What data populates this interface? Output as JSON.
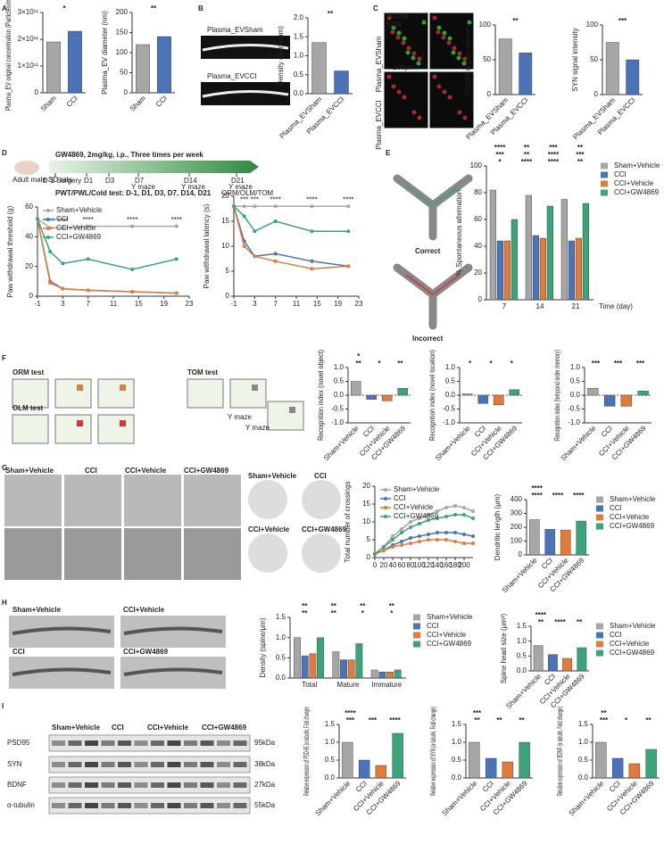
{
  "labels": [
    "A",
    "B",
    "C",
    "D",
    "E",
    "F",
    "G",
    "H",
    "I",
    "Plasma_EVSham",
    "Plasma_EVCCI",
    "4 μm",
    "PSD95",
    "SYN",
    "100μm",
    "Plasma_EVSham",
    "Plasma_EVCCI",
    "Adult male SD rats",
    "GW4869, 2mg/kg, i.p., Three times per week",
    "D-1 Surgery",
    "D1",
    "D3",
    "D7",
    "D14",
    "D21",
    "Y maze",
    "Y maze",
    "Y maze",
    "ORM/OLM/TOM",
    "PWT/PWL/Cold test: D-1, D1, D3, D7, D14, D21",
    "Correct",
    "Incorrect",
    "ORM test",
    "OLM test",
    "TOM test",
    "Y maze",
    "Y maze",
    "Sham+Vehicle",
    "CCI",
    "CCI+Vehicle",
    "CCI+GW4869",
    "Sham+Vehicle",
    "CCI",
    "CCI+Vehicle",
    "CCI+GW4869",
    "Sham+Vehicle",
    "CCI+Vehicle",
    "CCI",
    "CCI+GW4869",
    "Sham+Vehicle",
    "CCI",
    "CCI+Vehicle",
    "CCI+GW4869",
    "PSD95",
    "SYN",
    "BDNF",
    "α-tubulin",
    "95kDa",
    "38kDa",
    "27kDa",
    "55kDa"
  ],
  "chart_data": [
    {
      "type": "bar",
      "ylabel": "Plasma_EV original concentration (Particles/mL)",
      "categories": [
        "Sham",
        "CCI"
      ],
      "values": [
        190000000000,
        230000000000
      ],
      "colors": [
        "#a6a6a6",
        "#4a73b8"
      ],
      "ylim": [
        0,
        300000000000
      ],
      "yticks": [
        0,
        {
          "value": 100000000000,
          "label": "1×10¹¹"
        },
        {
          "value": 200000000000,
          "label": "2×10¹¹"
        },
        {
          "value": 300000000000,
          "label": "3×10¹¹"
        }
      ],
      "significance": [
        "*"
      ],
      "legend": "none"
    },
    {
      "type": "bar",
      "ylabel": "Plasma_EV diameter (nm)",
      "categories": [
        "Sham",
        "CCI"
      ],
      "values": [
        120,
        140
      ],
      "colors": [
        "#a6a6a6",
        "#4a73b8"
      ],
      "ylim": [
        0,
        200
      ],
      "yticks": [
        0,
        50,
        100,
        150,
        200
      ],
      "significance": [
        "**"
      ],
      "legend": "none"
    },
    {
      "type": "bar",
      "ylabel": "Density (spine/μm)",
      "categories": [
        "Plasma_EVSham",
        "Plasma_EVCCI"
      ],
      "values": [
        1.35,
        0.6
      ],
      "colors": [
        "#a6a6a6",
        "#4a73b8"
      ],
      "ylim": [
        0,
        2
      ],
      "yticks": [
        {
          "value": 0,
          "label": "0.0"
        },
        0.5,
        {
          "value": 1,
          "label": "1.0"
        },
        1.5,
        {
          "value": 2,
          "label": "2.0"
        }
      ],
      "significance": [
        "**"
      ],
      "legend": "none"
    },
    {
      "type": "bar",
      "ylabel": "PSD95 signal intensity",
      "categories": [
        "Plasma_EVSham",
        "Plasma_EVCCI"
      ],
      "values": [
        80,
        60
      ],
      "colors": [
        "#a6a6a6",
        "#4a73b8"
      ],
      "ylim": [
        0,
        100
      ],
      "yticks": [
        0,
        50,
        100
      ],
      "significance": [
        "**"
      ],
      "legend": "none"
    },
    {
      "type": "bar",
      "ylabel": "SYN signal intensity",
      "categories": [
        "Plasma_EVSham",
        "Plasma_EVCCI"
      ],
      "values": [
        75,
        50
      ],
      "colors": [
        "#a6a6a6",
        "#4a73b8"
      ],
      "ylim": [
        0,
        100
      ],
      "yticks": [
        0,
        50,
        100
      ],
      "significance": [
        "***"
      ],
      "legend": "none"
    },
    {
      "type": "line",
      "ylabel": "Paw withdrawal threshold (g)",
      "x": [
        -1,
        1,
        3,
        7,
        14,
        21
      ],
      "xlim": [
        -1,
        23
      ],
      "xticks": [
        -1,
        3,
        7,
        11,
        15,
        19,
        23
      ],
      "ylim": [
        0,
        60
      ],
      "yticks": [
        0,
        20,
        40,
        60
      ],
      "legend": "upper-left",
      "significance": [
        "****",
        "****",
        "****",
        "****",
        "****"
      ],
      "series": [
        {
          "name": "Sham+Vehicle",
          "color": "#a6a6a6",
          "values": [
            52,
            46,
            46,
            47,
            47,
            47
          ]
        },
        {
          "name": "CCI",
          "color": "#4a73b8",
          "values": [
            52,
            10,
            5,
            4,
            3,
            2
          ]
        },
        {
          "name": "CCI+Vehicle",
          "color": "#e07b39",
          "values": [
            52,
            9,
            5,
            4,
            3,
            2
          ]
        },
        {
          "name": "CCI+GW4869",
          "color": "#3aa57a",
          "values": [
            52,
            30,
            22,
            25,
            18,
            25
          ]
        }
      ]
    },
    {
      "type": "line",
      "ylabel": "Paw withdrawal latency (s)",
      "x": [
        -1,
        1,
        3,
        7,
        14,
        21
      ],
      "xlim": [
        -1,
        23
      ],
      "xticks": [
        -1,
        3,
        7,
        11,
        15,
        19,
        23
      ],
      "ylim": [
        0,
        20
      ],
      "yticks": [
        0,
        5,
        10,
        15,
        20
      ],
      "legend": "none",
      "significance": [
        "***",
        "***",
        "****",
        "****",
        "****"
      ],
      "series": [
        {
          "name": "Sham+Vehicle",
          "color": "#a6a6a6",
          "values": [
            18,
            18,
            18,
            18,
            18,
            18
          ]
        },
        {
          "name": "CCI",
          "color": "#4a73b8",
          "values": [
            18,
            11,
            8,
            8.5,
            7,
            6
          ]
        },
        {
          "name": "CCI+Vehicle",
          "color": "#e07b39",
          "values": [
            18,
            10,
            8,
            7,
            5.5,
            6
          ]
        },
        {
          "name": "CCI+GW4869",
          "color": "#3aa57a",
          "values": [
            18,
            16,
            13,
            15,
            13,
            13
          ]
        }
      ]
    },
    {
      "type": "bar",
      "ylabel": "% Spontaneous alternation",
      "xlabel": "Time (day)",
      "categories": [
        "7",
        "14",
        "21"
      ],
      "ylim": [
        0,
        100
      ],
      "yticks": [
        0,
        20,
        40,
        60,
        80,
        100
      ],
      "legend": "right",
      "significance": [
        "*",
        "****",
        "****",
        "**",
        "***",
        "**",
        "****",
        "***",
        "****",
        "**",
        "***",
        "**"
      ],
      "series": [
        {
          "name": "Sham+Vehicle",
          "color": "#a6a6a6",
          "values": [
            82,
            78,
            75
          ]
        },
        {
          "name": "CCI",
          "color": "#4a73b8",
          "values": [
            44,
            48,
            44
          ]
        },
        {
          "name": "CCI+Vehicle",
          "color": "#e07b39",
          "values": [
            44,
            46,
            46
          ]
        },
        {
          "name": "CCI+GW4869",
          "color": "#3aa57a",
          "values": [
            60,
            70,
            72
          ]
        }
      ]
    },
    {
      "type": "bar",
      "ylabel": "Recognition index (novel object)",
      "categories": [
        "Sham+Vehicle",
        "CCI",
        "CCI+Vehicle",
        "CCI+GW4869"
      ],
      "values": [
        0.5,
        -0.15,
        -0.2,
        0.25
      ],
      "colors": [
        "#a6a6a6",
        "#4a73b8",
        "#e07b39",
        "#3aa57a"
      ],
      "ylim": [
        -1,
        1
      ],
      "yticks": [
        {
          "value": -1,
          "label": "-1.0"
        },
        -0.5,
        {
          "value": 0,
          "label": "0.0"
        },
        0.5,
        {
          "value": 1,
          "label": "1.0"
        }
      ],
      "significance": [
        "**",
        "*",
        "**",
        "*"
      ],
      "legend": "none"
    },
    {
      "type": "bar",
      "ylabel": "Recognition index (novel location)",
      "categories": [
        "Sham+Vehicle",
        "CCI",
        "CCI+Vehicle",
        "CCI+GW4869"
      ],
      "values": [
        0.05,
        -0.3,
        -0.35,
        0.2
      ],
      "colors": [
        "#a6a6a6",
        "#4a73b8",
        "#e07b39",
        "#3aa57a"
      ],
      "ylim": [
        -1,
        1
      ],
      "yticks": [
        {
          "value": -1,
          "label": "-1.0"
        },
        -0.5,
        {
          "value": 0,
          "label": "0.0"
        },
        0.5,
        {
          "value": 1,
          "label": "1.0"
        }
      ],
      "significance": [
        "*",
        "*",
        "*"
      ],
      "legend": "none"
    },
    {
      "type": "bar",
      "ylabel": "Recognition index (temporal order memory)",
      "categories": [
        "Sham+Vehicle",
        "CCI",
        "CCI+Vehicle",
        "CCI+GW4869"
      ],
      "values": [
        0.25,
        -0.4,
        -0.4,
        0.15
      ],
      "colors": [
        "#a6a6a6",
        "#4a73b8",
        "#e07b39",
        "#3aa57a"
      ],
      "ylim": [
        -1,
        1
      ],
      "yticks": [
        {
          "value": -1,
          "label": "-1.0"
        },
        -0.5,
        {
          "value": 0,
          "label": "0.0"
        },
        0.5,
        {
          "value": 1,
          "label": "1.0"
        }
      ],
      "significance": [
        "***",
        "***",
        "***"
      ],
      "legend": "none"
    },
    {
      "type": "line",
      "ylabel": "Total number of crossings",
      "x": [
        0,
        20,
        40,
        60,
        80,
        100,
        120,
        140,
        160,
        180,
        200,
        220
      ],
      "xlim": [
        0,
        220
      ],
      "xticks": [
        0,
        20,
        40,
        60,
        80,
        100,
        120,
        140,
        160,
        180,
        200
      ],
      "ylim": [
        0,
        20
      ],
      "yticks": [
        0,
        5,
        10,
        15,
        20
      ],
      "legend": "upper-left",
      "series": [
        {
          "name": "Sham+Vehicle",
          "color": "#a6a6a6",
          "values": [
            1,
            3,
            6,
            8,
            10,
            11,
            12,
            13,
            14,
            14.5,
            14,
            13
          ]
        },
        {
          "name": "CCI",
          "color": "#4a73b8",
          "values": [
            1,
            2,
            3.5,
            4.5,
            5.5,
            6,
            6.5,
            7,
            7,
            7,
            6.5,
            6
          ]
        },
        {
          "name": "CCI+Vehicle",
          "color": "#e07b39",
          "values": [
            1,
            2,
            3,
            3.5,
            4,
            4.5,
            5,
            5,
            5,
            4.5,
            4,
            4
          ]
        },
        {
          "name": "CCI+GW4869",
          "color": "#3aa57a",
          "values": [
            1,
            3,
            5,
            7,
            8.5,
            9.5,
            10.5,
            11,
            11.5,
            12,
            12,
            11
          ]
        }
      ]
    },
    {
      "type": "bar",
      "ylabel": "Dendritic length (μm)",
      "categories": [
        "Sham+Vehicle",
        "CCI",
        "CCI+Vehicle",
        "CCI+GW4869"
      ],
      "values": [
        255,
        185,
        180,
        245
      ],
      "colors": [
        "#a6a6a6",
        "#4a73b8",
        "#e07b39",
        "#3aa57a"
      ],
      "ylim": [
        0,
        400
      ],
      "yticks": [
        0,
        100,
        200,
        300,
        400
      ],
      "significance": [
        "****",
        "****",
        "****",
        "****"
      ],
      "legend": "right"
    },
    {
      "type": "bar",
      "ylabel": "Density (spine/μm)",
      "categories": [
        "Total",
        "Mature",
        "Immature"
      ],
      "ylim": [
        0,
        1.5
      ],
      "yticks": [
        {
          "value": 0,
          "label": "0.0"
        },
        0.5,
        {
          "value": 1,
          "label": "1.0"
        },
        1.5
      ],
      "legend": "right",
      "significance": [
        "**",
        "**",
        "*",
        "*",
        "**",
        "**",
        "**",
        "**"
      ],
      "series": [
        {
          "name": "Sham+Vehicle",
          "color": "#a6a6a6",
          "values": [
            1.0,
            0.65,
            0.2
          ]
        },
        {
          "name": "CCI",
          "color": "#4a73b8",
          "values": [
            0.55,
            0.45,
            0.15
          ]
        },
        {
          "name": "CCI+Vehicle",
          "color": "#e07b39",
          "values": [
            0.6,
            0.45,
            0.15
          ]
        },
        {
          "name": "CCI+GW4869",
          "color": "#3aa57a",
          "values": [
            1.0,
            0.85,
            0.2
          ]
        }
      ]
    },
    {
      "type": "bar",
      "ylabel": "Spine head size (μm²)",
      "categories": [
        "Sham+Vehicle",
        "CCI",
        "CCI+Vehicle",
        "CCI+GW4869"
      ],
      "values": [
        0.85,
        0.55,
        0.42,
        0.78
      ],
      "colors": [
        "#a6a6a6",
        "#4a73b8",
        "#e07b39",
        "#3aa57a"
      ],
      "ylim": [
        0,
        1.5
      ],
      "yticks": [
        {
          "value": 0,
          "label": "0.0"
        },
        0.5,
        {
          "value": 1,
          "label": "1.0"
        },
        1.5
      ],
      "significance": [
        "**",
        "****",
        "**",
        "****"
      ],
      "legend": "right"
    },
    {
      "type": "bar",
      "ylabel": "Relative expression of PSD-95 (α-tubulin, Fold change)",
      "categories": [
        "Sham+Vehicle",
        "CCI",
        "CCI+Vehicle",
        "CCI+GW4869"
      ],
      "values": [
        1.0,
        0.5,
        0.35,
        1.25
      ],
      "colors": [
        "#a6a6a6",
        "#4a73b8",
        "#e07b39",
        "#3aa57a"
      ],
      "ylim": [
        0,
        1.5
      ],
      "yticks": [
        {
          "value": 0,
          "label": "0.0"
        },
        0.5,
        {
          "value": 1,
          "label": "1.0"
        },
        1.5
      ],
      "significance": [
        "***",
        "***",
        "****",
        "****"
      ],
      "legend": "none"
    },
    {
      "type": "bar",
      "ylabel": "Relative expression of SYN (α-tubulin, Fold change)",
      "categories": [
        "Sham+Vehicle",
        "CCI",
        "CCI+Vehicle",
        "CCI+GW4869"
      ],
      "values": [
        1.0,
        0.55,
        0.45,
        1.0
      ],
      "colors": [
        "#a6a6a6",
        "#4a73b8",
        "#e07b39",
        "#3aa57a"
      ],
      "ylim": [
        0,
        1.5
      ],
      "yticks": [
        {
          "value": 0,
          "label": "0.0"
        },
        0.5,
        {
          "value": 1,
          "label": "1.0"
        },
        1.5
      ],
      "significance": [
        "**",
        "**",
        "**",
        "***"
      ],
      "legend": "none"
    },
    {
      "type": "bar",
      "ylabel": "Relative expression of BDNF (α-tubulin, Fold change)",
      "categories": [
        "Sham+Vehicle",
        "CCI",
        "CCI+Vehicle",
        "CCI+GW4869"
      ],
      "values": [
        1.0,
        0.55,
        0.4,
        0.8
      ],
      "colors": [
        "#a6a6a6",
        "#4a73b8",
        "#e07b39",
        "#3aa57a"
      ],
      "ylim": [
        0,
        1.5
      ],
      "yticks": [
        {
          "value": 0,
          "label": "0.0"
        },
        0.5,
        {
          "value": 1,
          "label": "1.0"
        },
        1.5
      ],
      "significance": [
        "***",
        "*",
        "**",
        "**"
      ],
      "legend": "none"
    }
  ]
}
